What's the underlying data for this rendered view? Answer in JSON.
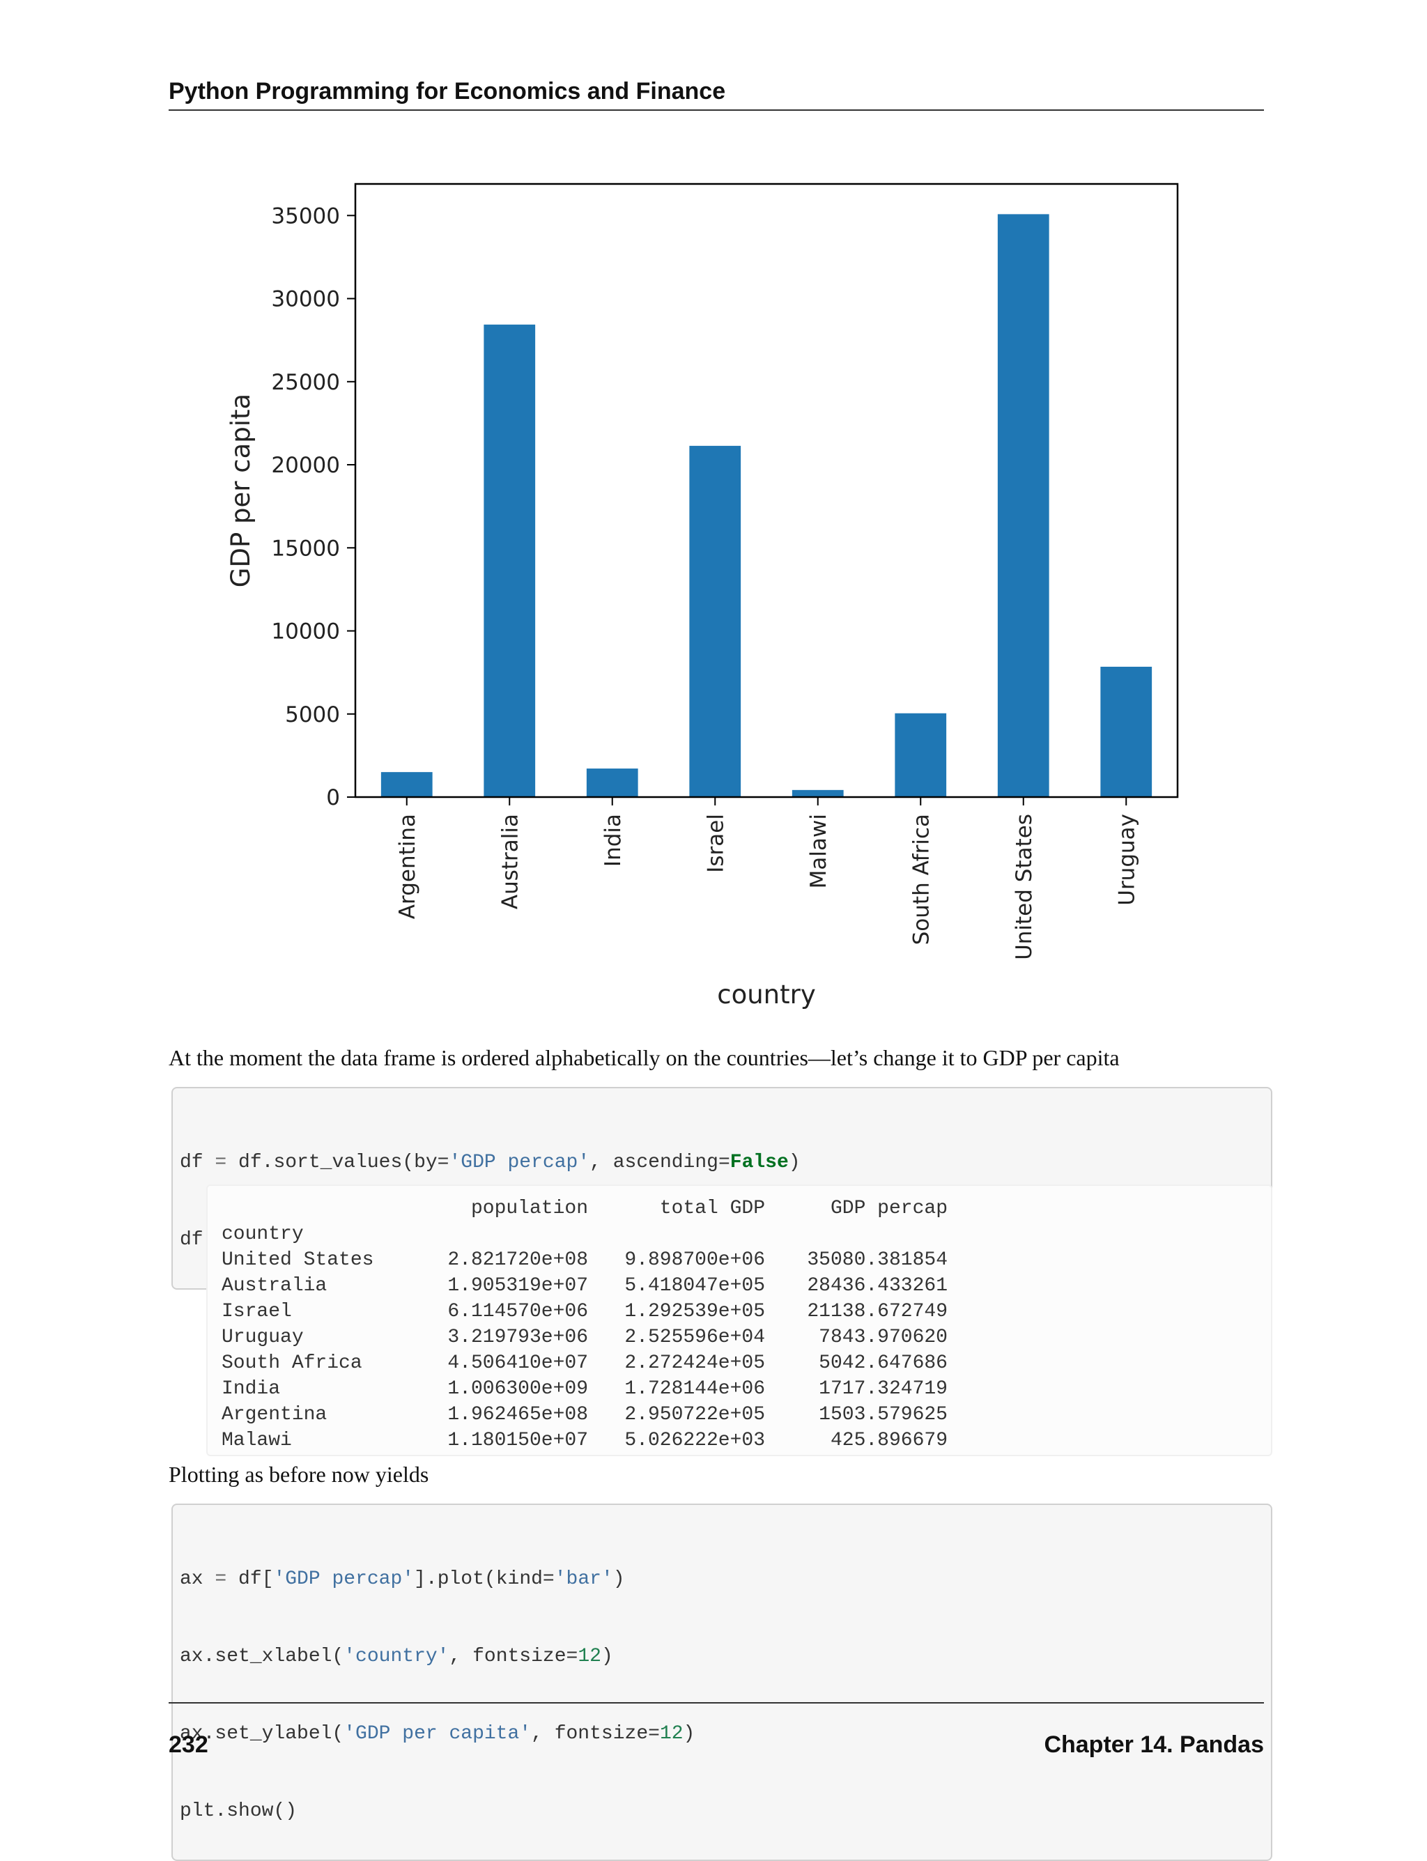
{
  "header": {
    "running_title": "Python Programming for Economics and Finance"
  },
  "chart_data": {
    "type": "bar",
    "categories": [
      "Argentina",
      "Australia",
      "India",
      "Israel",
      "Malawi",
      "South Africa",
      "United States",
      "Uruguay"
    ],
    "values": [
      1503.579625,
      28436.433261,
      1717.324719,
      21138.672749,
      425.896679,
      5042.647686,
      35080.381854,
      7843.97062
    ],
    "xlabel": "country",
    "ylabel": "GDP per capita",
    "ylim": [
      0,
      36900
    ],
    "yticks": [
      "0",
      "5000",
      "10000",
      "15000",
      "20000",
      "25000",
      "30000",
      "35000"
    ],
    "ytick_values": [
      0,
      5000,
      10000,
      15000,
      20000,
      25000,
      30000,
      35000
    ],
    "bar_color": "#1f77b4",
    "grid": false,
    "legend": false
  },
  "body": {
    "para1": "At the moment the data frame is ordered alphabetically on the countries—let’s change it to GDP per capita",
    "para2": "Plotting as before now yields"
  },
  "code1": {
    "line1": [
      "df",
      " = ",
      "df.sort_values(by=",
      "'GDP percap'",
      ", ascending=",
      "False",
      ")"
    ],
    "line2": "df"
  },
  "output_table": {
    "columns": [
      "population",
      "total GDP",
      "GDP percap"
    ],
    "index_name": "country",
    "rows": [
      [
        "United States",
        "2.821720e+08",
        "9.898700e+06",
        "35080.381854"
      ],
      [
        "Australia",
        "1.905319e+07",
        "5.418047e+05",
        "28436.433261"
      ],
      [
        "Israel",
        "6.114570e+06",
        "1.292539e+05",
        "21138.672749"
      ],
      [
        "Uruguay",
        "3.219793e+06",
        "2.525596e+04",
        "7843.970620"
      ],
      [
        "South Africa",
        "4.506410e+07",
        "2.272424e+05",
        "5042.647686"
      ],
      [
        "India",
        "1.006300e+09",
        "1.728144e+06",
        "1717.324719"
      ],
      [
        "Argentina",
        "1.962465e+08",
        "2.950722e+05",
        "1503.579625"
      ],
      [
        "Malawi",
        "1.180150e+07",
        "5.026222e+03",
        "425.896679"
      ]
    ]
  },
  "code2": {
    "l1": [
      "ax",
      " = ",
      "df[",
      "'GDP percap'",
      "].plot(kind=",
      "'bar'",
      ")"
    ],
    "l2": [
      "ax.set_xlabel(",
      "'country'",
      ", fontsize=",
      "12",
      ")"
    ],
    "l3": [
      "ax.set_ylabel(",
      "'GDP per capita'",
      ", fontsize=",
      "12",
      ")"
    ],
    "l4": "plt.show()"
  },
  "footer": {
    "page_number": "232",
    "chapter": "Chapter 14.  Pandas"
  }
}
